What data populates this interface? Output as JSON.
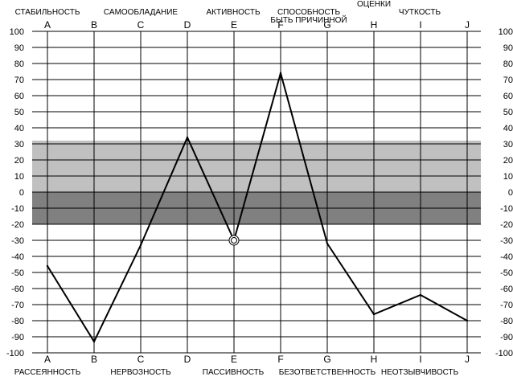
{
  "chart_data": {
    "type": "line",
    "categories": [
      "A",
      "B",
      "C",
      "D",
      "E",
      "F",
      "G",
      "H",
      "I",
      "J"
    ],
    "series": [
      {
        "values": [
          -46,
          -93,
          -33,
          34,
          -30,
          74,
          -32,
          -76,
          -64,
          -80
        ]
      }
    ],
    "ylim": [
      -100,
      100
    ],
    "ytick_step": 10,
    "top_traits": [
      "СТАБИЛЬНОСТЬ",
      "САМООБЛАДАНИЕ",
      "АКТИВНОСТЬ",
      "СПОСОБНОСТЬ\nБЫТЬ ПРИЧИННОЙ",
      "ОЦЕНКИ",
      "ЧУТКОСТЬ"
    ],
    "bottom_traits": [
      "РАССЕЯННОСТЬ",
      "НЕРВОЗНОСТЬ",
      "ПАССИВНОСТЬ",
      "БЕЗОТВЕТСТВЕННОСТЬ",
      "НЕОТЗЫВЧИВОСТЬ"
    ],
    "bands": [
      {
        "from": 0,
        "to": 32,
        "color": "#c0c0c0"
      },
      {
        "from": -20,
        "to": 0,
        "color": "#808080"
      }
    ],
    "grid": true,
    "marker_category": "E"
  }
}
